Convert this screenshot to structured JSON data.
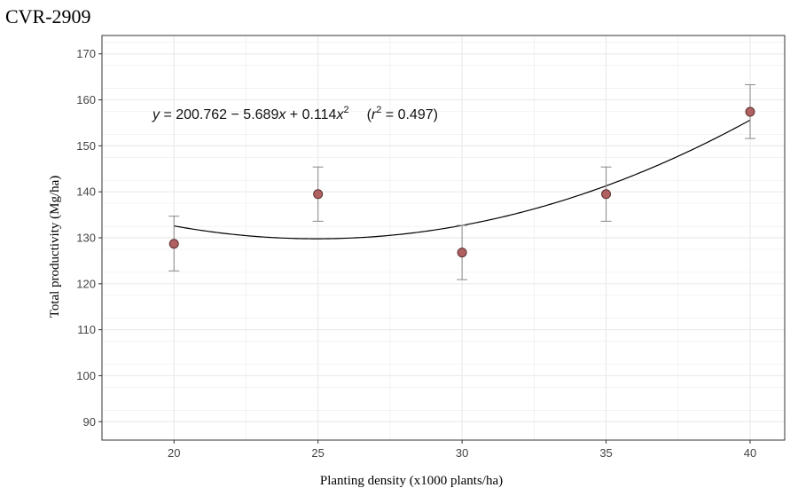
{
  "chart_data": {
    "type": "scatter",
    "title": "CVR-2909",
    "xlabel": "Planting density (x1000 plants/ha)",
    "ylabel": "Total productivity (Mg/ha)",
    "xlim": [
      17.5,
      41.2
    ],
    "ylim": [
      86,
      174
    ],
    "xticks": [
      "20",
      "25",
      "30",
      "35",
      "40"
    ],
    "yticks": [
      "90",
      "100",
      "110",
      "120",
      "130",
      "140",
      "150",
      "160",
      "170"
    ],
    "grid": true,
    "colors": {
      "points": "#b06060",
      "point_stroke": "#5a3030",
      "curve": "#000000",
      "errorbars": "#888888",
      "grid": "#ebebeb"
    },
    "points": [
      {
        "x": 20,
        "y": 128.7,
        "err_low": 122.8,
        "err_high": 134.7
      },
      {
        "x": 25,
        "y": 139.5,
        "err_low": 133.6,
        "err_high": 145.4
      },
      {
        "x": 30,
        "y": 126.8,
        "err_low": 120.9,
        "err_high": 132.7
      },
      {
        "x": 35,
        "y": 139.5,
        "err_low": 133.6,
        "err_high": 145.4
      },
      {
        "x": 40,
        "y": 157.4,
        "err_low": 151.6,
        "err_high": 163.3
      }
    ],
    "fit": {
      "intercept": 200.762,
      "b1": -5.689,
      "b2": 0.114,
      "x_range": [
        20,
        40
      ]
    },
    "annotation": {
      "y": "y",
      "eq": " = 200.762 − 5.689",
      "x1": "x",
      "plus": " + 0.114",
      "x2": "x",
      "sup2": "2",
      "open": "(",
      "r": "r",
      "r_sup": "2",
      "r_val": " = 0.497)"
    }
  }
}
